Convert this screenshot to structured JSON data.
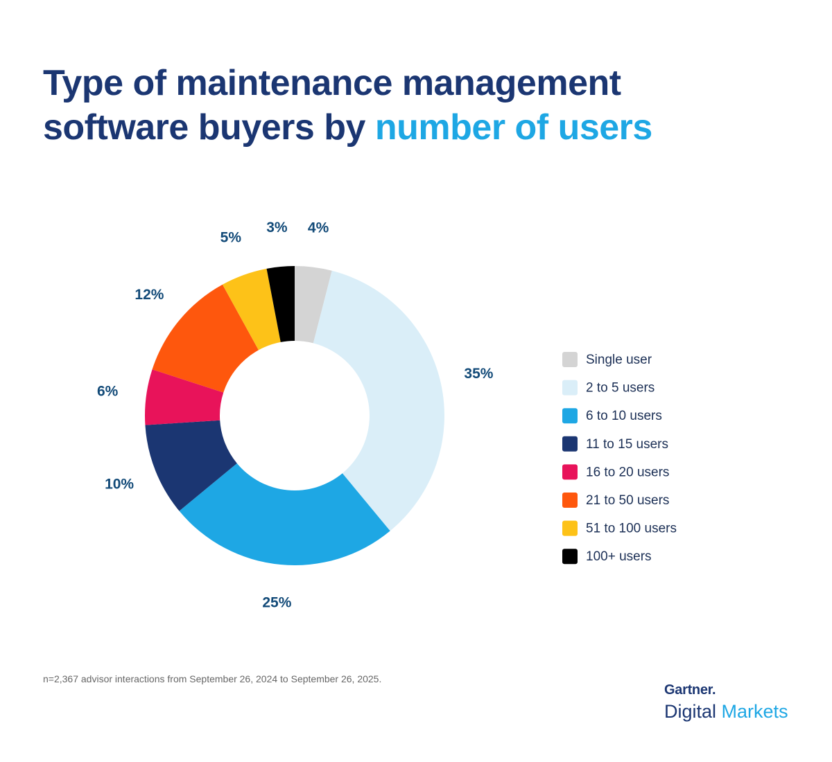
{
  "chart_data": {
    "type": "pie",
    "title": "Type of maintenance management software buyers by",
    "title_highlight": "number of users",
    "categories": [
      "Single user",
      "2 to 5 users",
      "6 to 10 users",
      "11 to 15 users",
      "16 to 20 users",
      "21 to 50 users",
      "51 to 100 users",
      "100+ users"
    ],
    "values": [
      4,
      35,
      25,
      10,
      6,
      12,
      5,
      3
    ],
    "value_labels": [
      "4%",
      "35%",
      "25%",
      "10%",
      "6%",
      "12%",
      "5%",
      "3%"
    ],
    "colors": [
      "#d4d4d4",
      "#daeef8",
      "#1ea7e4",
      "#1b3672",
      "#e8135a",
      "#fe570d",
      "#fdc218",
      "#000000"
    ],
    "legend": "right",
    "footnote": "n=2,367 advisor interactions from September 26, 2024 to September 26, 2025."
  },
  "brand": {
    "name": "Gartner.",
    "product": "Digital",
    "product_highlight": "Markets"
  }
}
